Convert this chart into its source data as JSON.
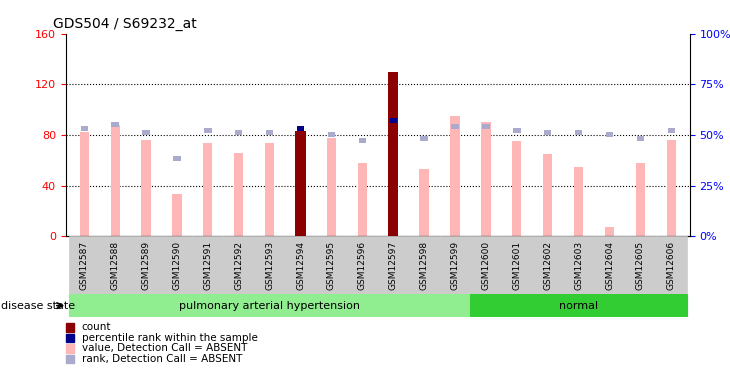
{
  "title": "GDS504 / S69232_at",
  "samples": [
    "GSM12587",
    "GSM12588",
    "GSM12589",
    "GSM12590",
    "GSM12591",
    "GSM12592",
    "GSM12593",
    "GSM12594",
    "GSM12595",
    "GSM12596",
    "GSM12597",
    "GSM12598",
    "GSM12599",
    "GSM12600",
    "GSM12601",
    "GSM12602",
    "GSM12603",
    "GSM12604",
    "GSM12605",
    "GSM12606"
  ],
  "values_absent": [
    82,
    88,
    76,
    33,
    74,
    66,
    74,
    83,
    78,
    58,
    130,
    53,
    95,
    90,
    75,
    65,
    55,
    7,
    58,
    76
  ],
  "ranks_absent_pct": [
    53,
    55,
    51,
    38,
    52,
    51,
    51,
    53,
    50,
    47,
    56,
    48,
    54,
    54,
    52,
    51,
    51,
    50,
    48,
    52
  ],
  "count_bars": [
    false,
    false,
    false,
    false,
    false,
    false,
    false,
    true,
    false,
    false,
    true,
    false,
    false,
    false,
    false,
    false,
    false,
    false,
    false,
    false
  ],
  "count_values": [
    82,
    88,
    76,
    33,
    74,
    66,
    74,
    83,
    78,
    58,
    130,
    53,
    95,
    90,
    75,
    65,
    55,
    7,
    58,
    76
  ],
  "rank_present_pct": [
    null,
    null,
    null,
    null,
    null,
    null,
    null,
    53,
    null,
    null,
    57,
    null,
    null,
    null,
    null,
    null,
    null,
    null,
    null,
    null
  ],
  "groups": [
    {
      "label": "pulmonary arterial hypertension",
      "start": 0,
      "end": 13,
      "color": "#90EE90"
    },
    {
      "label": "normal",
      "start": 13,
      "end": 20,
      "color": "#32CD32"
    }
  ],
  "ylim_left": [
    0,
    160
  ],
  "ylim_right": [
    0,
    100
  ],
  "yticks_left": [
    0,
    40,
    80,
    120,
    160
  ],
  "yticks_right": [
    0,
    25,
    50,
    75,
    100
  ],
  "ytick_labels_left": [
    "0",
    "40",
    "80",
    "120",
    "160"
  ],
  "ytick_labels_right": [
    "0%",
    "25%",
    "50%",
    "75%",
    "100%"
  ],
  "grid_lines": [
    40,
    80,
    120
  ],
  "color_value_absent": "#FFB6B6",
  "color_rank_absent": "#AAAACC",
  "color_count": "#8B0000",
  "color_rank_present": "#00008B",
  "bar_width": 0.3,
  "disease_state_label": "disease state",
  "legend_items": [
    {
      "color": "#8B0000",
      "label": "count"
    },
    {
      "color": "#00008B",
      "label": "percentile rank within the sample"
    },
    {
      "color": "#FFB6B6",
      "label": "value, Detection Call = ABSENT"
    },
    {
      "color": "#AAAACC",
      "label": "rank, Detection Call = ABSENT"
    }
  ]
}
